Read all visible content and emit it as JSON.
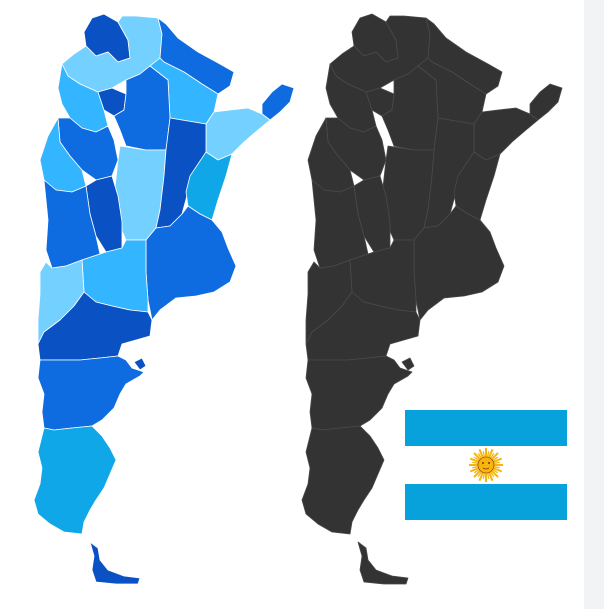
{
  "colors": {
    "sky": "#74d1ff",
    "light_blue": "#33b5ff",
    "medium_blue": "#1a83f0",
    "royal_blue": "#0f6be0",
    "deep_blue": "#0a52c4",
    "cyan": "#10a7e8",
    "dark_map": "#333333",
    "dark_map_border": "#4a4a4a",
    "flag_blue": "#07a1dc",
    "flag_white": "#ffffff",
    "sun": "#f6b40e",
    "sun_dark": "#85340a",
    "background": "#ffffff",
    "side_strip": "#f2f3f5"
  },
  "icons": {
    "colored_map": "argentina-provinces-map-icon",
    "dark_map": "argentina-silhouette-map-icon",
    "flag": "argentina-flag-icon",
    "sun": "sun-of-may-icon"
  }
}
